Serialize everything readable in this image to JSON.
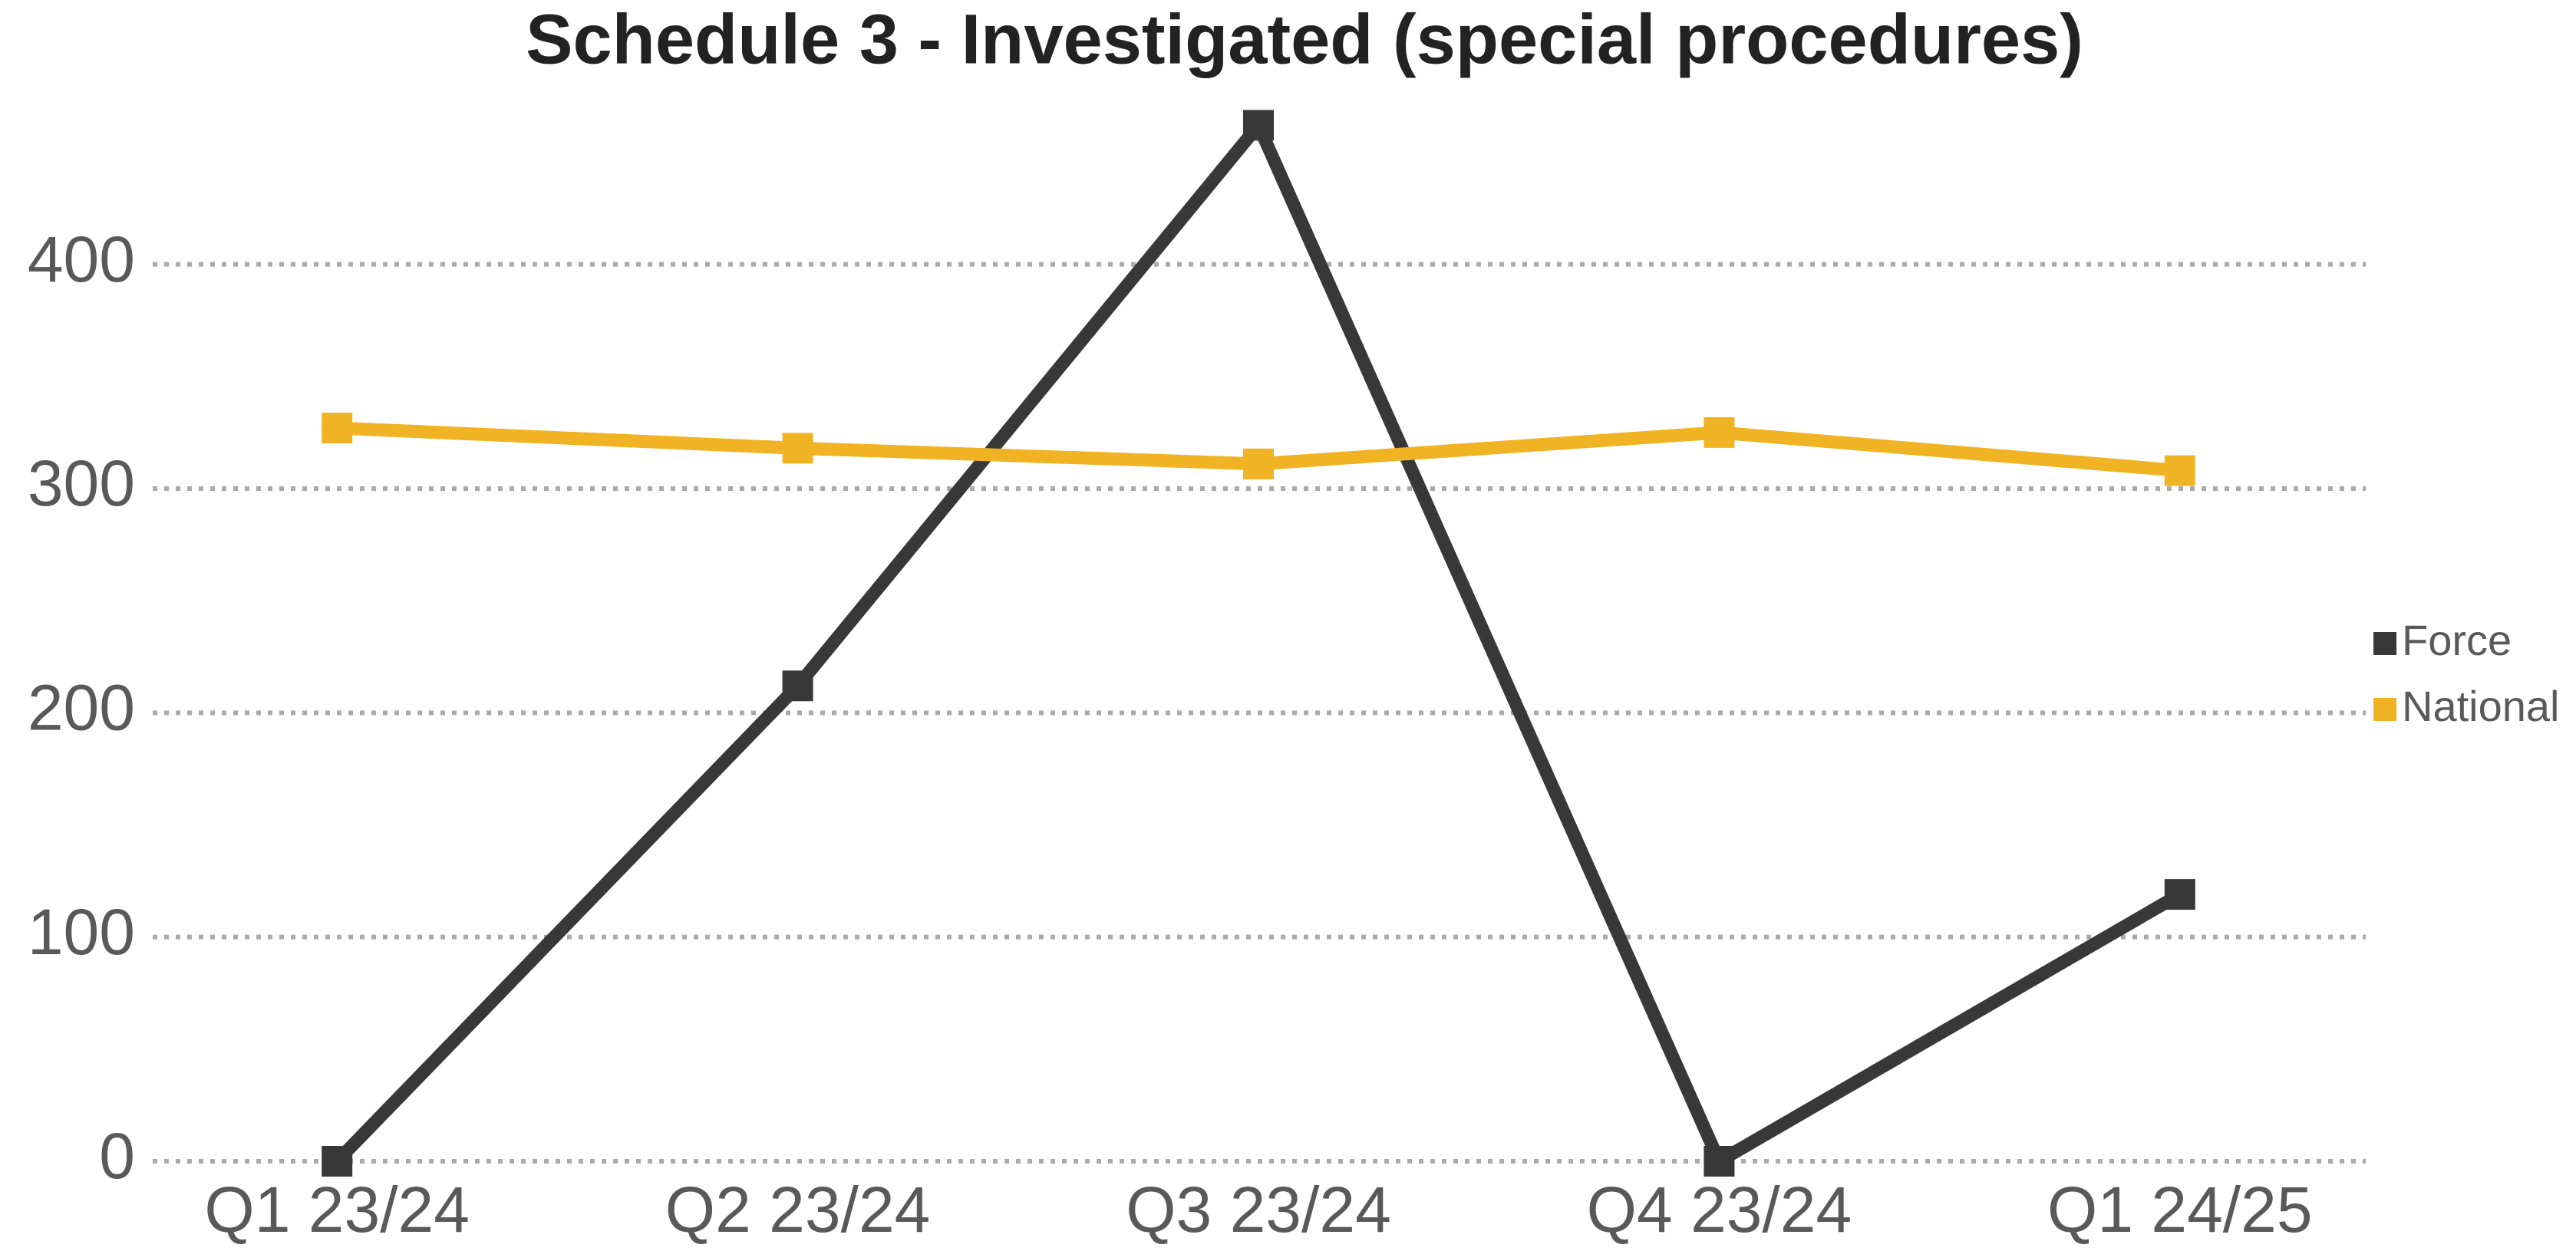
{
  "chart_data": {
    "type": "line",
    "title": "Schedule 3 - Investigated (special procedures)",
    "categories": [
      "Q1 23/24",
      "Q2 23/24",
      "Q3 23/24",
      "Q4 23/24",
      "Q1 24/25"
    ],
    "series": [
      {
        "name": "Force",
        "color": "#383838",
        "values": [
          0,
          212,
          462,
          0,
          119
        ]
      },
      {
        "name": "National",
        "color": "#f0b323",
        "values": [
          327,
          318,
          311,
          325,
          308
        ]
      }
    ],
    "ylim": [
      0,
      470
    ],
    "yticks": [
      0,
      100,
      200,
      300,
      400
    ],
    "grid": true,
    "legend": "right"
  }
}
